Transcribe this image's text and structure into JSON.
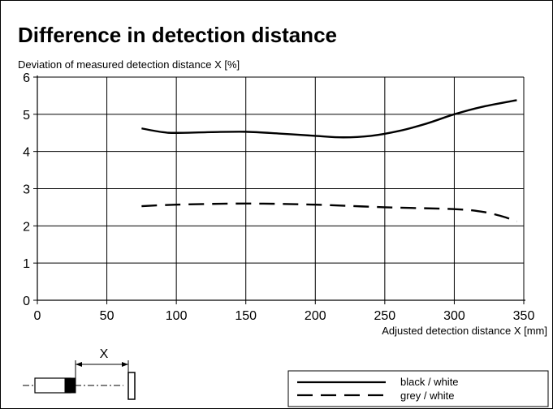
{
  "chart_data": {
    "type": "line",
    "title": "Difference in detection distance",
    "xlabel": "Adjusted detection distance X [mm]",
    "ylabel": "Deviation of  measured detection distance X [%]",
    "xlim": [
      0,
      350
    ],
    "ylim": [
      0,
      6
    ],
    "xticks": [
      0,
      50,
      100,
      150,
      200,
      250,
      300,
      350
    ],
    "yticks": [
      0,
      1,
      2,
      3,
      4,
      5,
      6
    ],
    "grid": true,
    "legend_position": "bottom-right",
    "series": [
      {
        "name": "black / white",
        "style": "solid",
        "x": [
          75,
          90,
          100,
          125,
          150,
          175,
          200,
          220,
          240,
          260,
          280,
          300,
          320,
          345
        ],
        "y": [
          4.62,
          4.52,
          4.5,
          4.52,
          4.53,
          4.48,
          4.42,
          4.38,
          4.42,
          4.55,
          4.75,
          5.0,
          5.2,
          5.38
        ]
      },
      {
        "name": "grey / white",
        "style": "dashed",
        "x": [
          75,
          100,
          150,
          200,
          250,
          300,
          320,
          335,
          345
        ],
        "y": [
          2.53,
          2.57,
          2.6,
          2.57,
          2.5,
          2.45,
          2.38,
          2.25,
          2.12
        ]
      }
    ]
  },
  "diagram": {
    "dimension_label": "X"
  }
}
